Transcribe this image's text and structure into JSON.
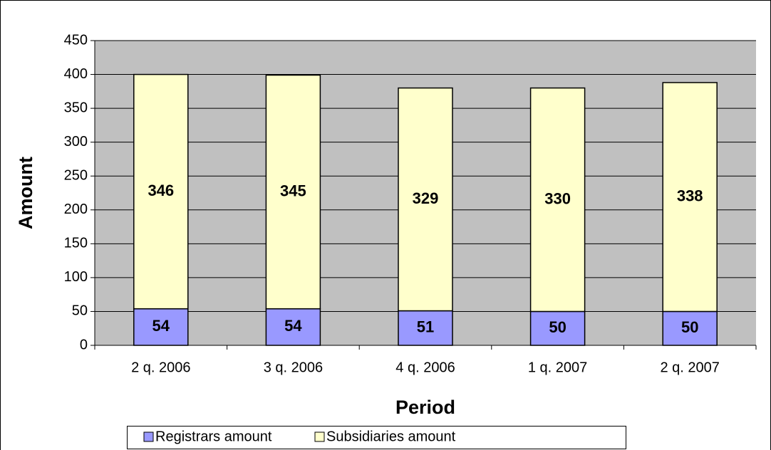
{
  "chart_data": {
    "type": "stacked_bar",
    "x_label": "Period",
    "y_label": "Amount",
    "categories": [
      "2 q. 2006",
      "3 q. 2006",
      "4 q. 2006",
      "1 q. 2007",
      "2 q. 2007"
    ],
    "series": [
      {
        "name": "Registrars amount",
        "color": "#9999ff",
        "values": [
          54,
          54,
          51,
          50,
          50
        ]
      },
      {
        "name": "Subsidiaries amount",
        "color": "#ffffcc",
        "values": [
          346,
          345,
          329,
          330,
          338
        ]
      }
    ],
    "ylim": [
      0,
      450
    ],
    "yticks": [
      0,
      50,
      100,
      150,
      200,
      250,
      300,
      350,
      400,
      450
    ],
    "grid": true,
    "legend": "bottom"
  }
}
